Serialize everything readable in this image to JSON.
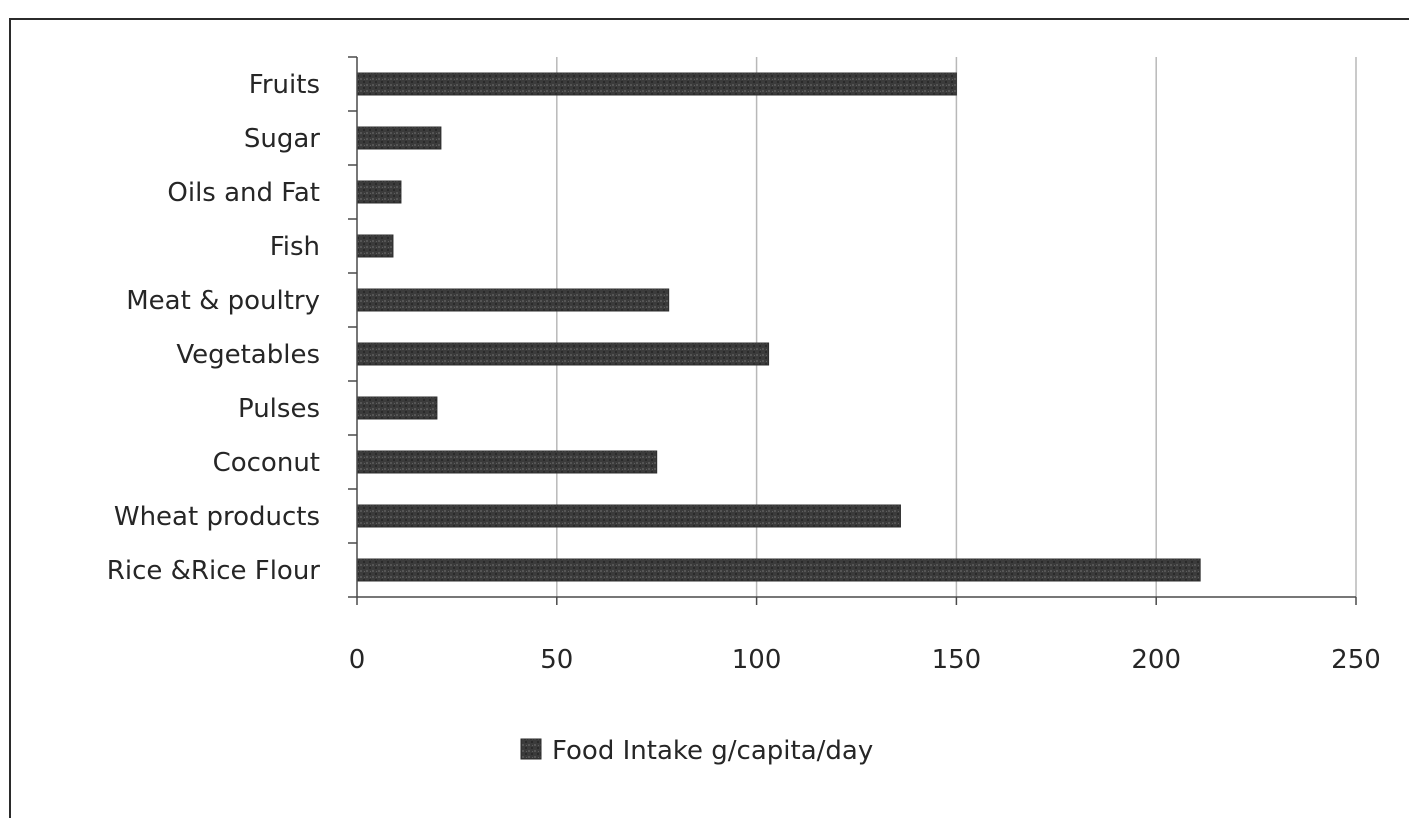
{
  "chart_data": {
    "type": "bar",
    "orientation": "horizontal",
    "title": "",
    "xlabel": "",
    "ylabel": "",
    "categories": [
      "Rice &Rice Flour",
      "Wheat products",
      "Coconut",
      "Pulses",
      "Vegetables",
      "Meat & poultry",
      "Fish",
      "Oils and Fat",
      "Sugar",
      "Fruits"
    ],
    "series": [
      {
        "name": "Food Intake g/capita/day",
        "values": [
          211,
          136,
          75,
          20,
          103,
          78,
          9,
          11,
          21,
          150
        ],
        "color": "#3a3a3a"
      }
    ],
    "xlim": [
      0,
      250
    ],
    "xticks": [
      0,
      50,
      100,
      150,
      200,
      250
    ],
    "xtick_labels": [
      "0",
      "50",
      "100",
      "150",
      "200",
      "250"
    ],
    "grid": "vertical",
    "legend_position": "bottom-center"
  }
}
